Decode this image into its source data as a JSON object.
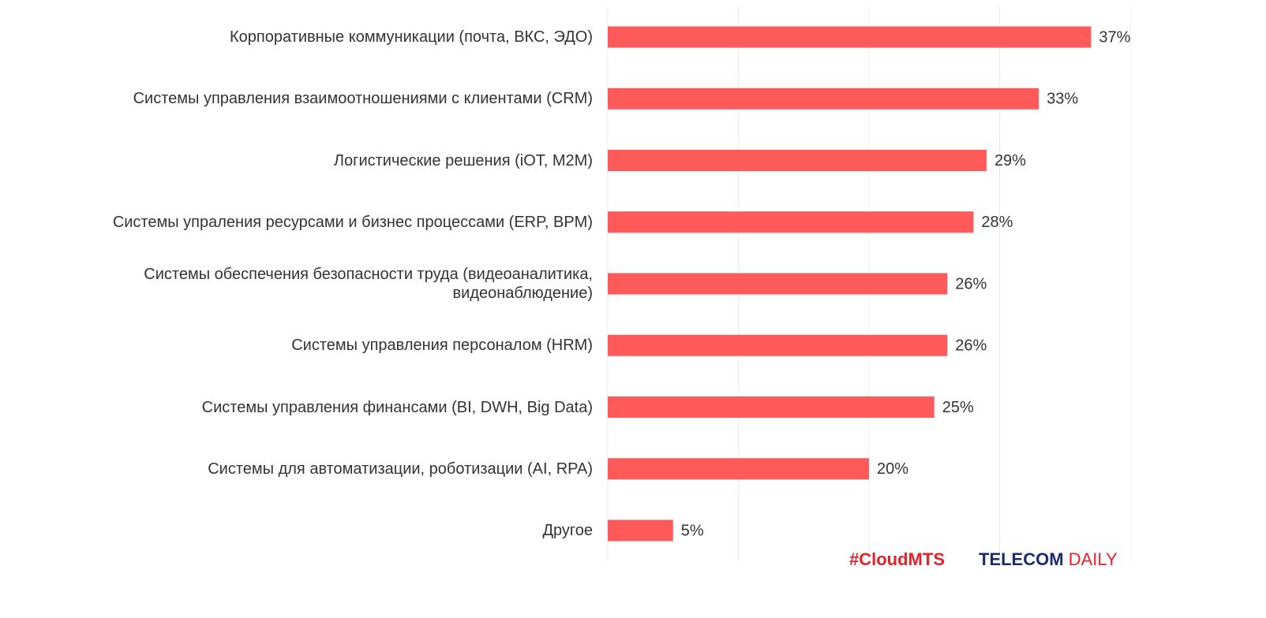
{
  "chart_data": {
    "type": "barh",
    "categories": [
      "Корпоративные коммуникации (почта, ВКС, ЭДО)",
      "Системы управления взаимоотношениями с клиентами (CRM)",
      "Логистические решения (iOT, M2M)",
      "Системы упраления ресурсами и бизнес процессами (ERP, BPM)",
      "Системы обеспечения безопасности труда (видеоаналитика, видеонаблюдение)",
      "Системы управления персоналом (HRM)",
      "Системы управления финансами (BI, DWH, Big Data)",
      "Системы для автоматизации, роботизации (AI, RPA)",
      "Другое"
    ],
    "values": [
      37,
      33,
      29,
      28,
      26,
      26,
      25,
      20,
      5
    ],
    "value_labels": [
      "37%",
      "33%",
      "29%",
      "28%",
      "26%",
      "26%",
      "25%",
      "20%",
      "5%"
    ],
    "color": "#ff5a5a",
    "xlim": [
      0,
      40
    ],
    "xticks": [
      0,
      10,
      20,
      30,
      40
    ],
    "grid": true
  },
  "logos": {
    "cloudmts": "#CloudMTS",
    "telecom": "TELECOM",
    "daily": "DAILY"
  }
}
